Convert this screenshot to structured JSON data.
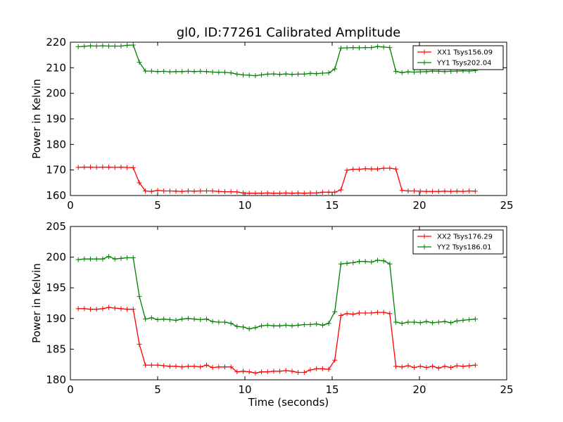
{
  "chart_data": [
    {
      "type": "line",
      "title": "gl0, ID:77261 Calibrated Amplitude",
      "xlabel": "",
      "ylabel": "Power in Kelvin",
      "xlim": [
        0,
        25
      ],
      "ylim": [
        160,
        220
      ],
      "xticks": [
        0,
        5,
        10,
        15,
        20,
        25
      ],
      "yticks": [
        160,
        170,
        180,
        190,
        200,
        210,
        220
      ],
      "grid": false,
      "legend": "top-right",
      "x": [
        0.45,
        0.8,
        1.15,
        1.5,
        1.85,
        2.2,
        2.55,
        2.9,
        3.25,
        3.6,
        3.95,
        4.3,
        4.65,
        5.0,
        5.35,
        5.7,
        6.05,
        6.4,
        6.75,
        7.1,
        7.45,
        7.8,
        8.15,
        8.5,
        8.85,
        9.2,
        9.55,
        9.9,
        10.25,
        10.6,
        10.95,
        11.3,
        11.65,
        12.0,
        12.35,
        12.7,
        13.05,
        13.4,
        13.75,
        14.1,
        14.45,
        14.8,
        15.15,
        15.5,
        15.85,
        16.2,
        16.55,
        16.9,
        17.25,
        17.6,
        17.95,
        18.3,
        18.65,
        19.0,
        19.35,
        19.7,
        20.05,
        20.4,
        20.75,
        21.1,
        21.45,
        21.8,
        22.15,
        22.5,
        22.85,
        23.2
      ],
      "series": [
        {
          "name": "XX1 Tsys156.09",
          "color": "#ff0000",
          "values": [
            171.0,
            171.1,
            171.1,
            171.0,
            171.1,
            171.1,
            171.0,
            171.1,
            171.0,
            170.9,
            165.0,
            161.8,
            161.6,
            162.0,
            161.8,
            161.8,
            161.7,
            161.6,
            161.8,
            161.7,
            161.8,
            161.8,
            161.8,
            161.6,
            161.5,
            161.5,
            161.4,
            161.0,
            160.9,
            160.9,
            160.9,
            161.0,
            160.9,
            160.9,
            161.0,
            160.9,
            161.0,
            160.9,
            161.0,
            161.0,
            161.3,
            161.3,
            161.3,
            162.2,
            169.9,
            170.3,
            170.3,
            170.5,
            170.4,
            170.4,
            170.7,
            170.7,
            170.4,
            162.0,
            161.8,
            161.8,
            161.7,
            161.6,
            161.6,
            161.6,
            161.7,
            161.6,
            161.7,
            161.6,
            161.8,
            161.7
          ]
        },
        {
          "name": "YY1 Tsys202.04",
          "color": "#008000",
          "values": [
            218.2,
            218.4,
            218.6,
            218.5,
            218.6,
            218.5,
            218.5,
            218.5,
            218.8,
            218.9,
            212.2,
            208.7,
            208.7,
            208.5,
            208.6,
            208.4,
            208.5,
            208.5,
            208.6,
            208.5,
            208.6,
            208.5,
            208.3,
            208.2,
            208.2,
            208.0,
            207.5,
            207.2,
            207.1,
            206.9,
            207.2,
            207.5,
            207.6,
            207.4,
            207.6,
            207.4,
            207.5,
            207.5,
            207.8,
            207.7,
            207.9,
            208.0,
            209.5,
            217.7,
            217.8,
            217.9,
            217.8,
            217.9,
            217.9,
            218.3,
            218.1,
            217.9,
            208.6,
            208.1,
            208.4,
            208.3,
            208.4,
            208.5,
            208.7,
            208.6,
            208.5,
            208.6,
            208.7,
            208.8,
            208.7,
            208.9
          ]
        }
      ]
    },
    {
      "type": "line",
      "title": "",
      "xlabel": "Time (seconds)",
      "ylabel": "Power in Kelvin",
      "xlim": [
        0,
        25
      ],
      "ylim": [
        180,
        205
      ],
      "xticks": [
        0,
        5,
        10,
        15,
        20,
        25
      ],
      "yticks": [
        180,
        185,
        190,
        195,
        200,
        205
      ],
      "grid": false,
      "legend": "top-right",
      "x": [
        0.45,
        0.8,
        1.15,
        1.5,
        1.85,
        2.2,
        2.55,
        2.9,
        3.25,
        3.6,
        3.95,
        4.3,
        4.65,
        5.0,
        5.35,
        5.7,
        6.05,
        6.4,
        6.75,
        7.1,
        7.45,
        7.8,
        8.15,
        8.5,
        8.85,
        9.2,
        9.55,
        9.9,
        10.25,
        10.6,
        10.95,
        11.3,
        11.65,
        12.0,
        12.35,
        12.7,
        13.05,
        13.4,
        13.75,
        14.1,
        14.45,
        14.8,
        15.15,
        15.5,
        15.85,
        16.2,
        16.55,
        16.9,
        17.25,
        17.6,
        17.95,
        18.3,
        18.65,
        19.0,
        19.35,
        19.7,
        20.05,
        20.4,
        20.75,
        21.1,
        21.45,
        21.8,
        22.15,
        22.5,
        22.85,
        23.2
      ],
      "series": [
        {
          "name": "XX2 Tsys176.29",
          "color": "#ff0000",
          "values": [
            191.6,
            191.6,
            191.5,
            191.5,
            191.6,
            191.8,
            191.7,
            191.6,
            191.5,
            191.5,
            185.8,
            182.4,
            182.4,
            182.4,
            182.3,
            182.2,
            182.2,
            182.1,
            182.2,
            182.2,
            182.1,
            182.4,
            182.0,
            182.1,
            182.1,
            182.1,
            181.3,
            181.4,
            181.3,
            181.1,
            181.3,
            181.3,
            181.4,
            181.4,
            181.5,
            181.4,
            181.2,
            181.2,
            181.6,
            181.8,
            181.8,
            181.7,
            183.2,
            190.5,
            190.8,
            190.7,
            190.9,
            190.9,
            190.9,
            191.0,
            191.0,
            190.8,
            182.2,
            182.1,
            182.3,
            182.0,
            182.2,
            182.0,
            182.2,
            181.9,
            182.2,
            182.0,
            182.3,
            182.2,
            182.3,
            182.4
          ]
        },
        {
          "name": "YY2 Tsys186.01",
          "color": "#008000",
          "values": [
            199.6,
            199.7,
            199.7,
            199.7,
            199.7,
            200.1,
            199.7,
            199.8,
            199.9,
            199.9,
            193.6,
            189.9,
            190.1,
            189.8,
            189.9,
            189.8,
            189.7,
            189.9,
            190.0,
            189.9,
            189.8,
            189.9,
            189.5,
            189.4,
            189.4,
            189.2,
            188.7,
            188.6,
            188.3,
            188.5,
            188.8,
            188.9,
            188.8,
            188.8,
            188.9,
            188.8,
            188.9,
            189.0,
            189.0,
            189.1,
            188.9,
            189.2,
            191.1,
            198.9,
            199.0,
            199.1,
            199.3,
            199.3,
            199.2,
            199.5,
            199.4,
            198.9,
            189.4,
            189.2,
            189.4,
            189.4,
            189.3,
            189.5,
            189.3,
            189.4,
            189.5,
            189.3,
            189.6,
            189.7,
            189.8,
            189.9
          ]
        }
      ]
    }
  ]
}
